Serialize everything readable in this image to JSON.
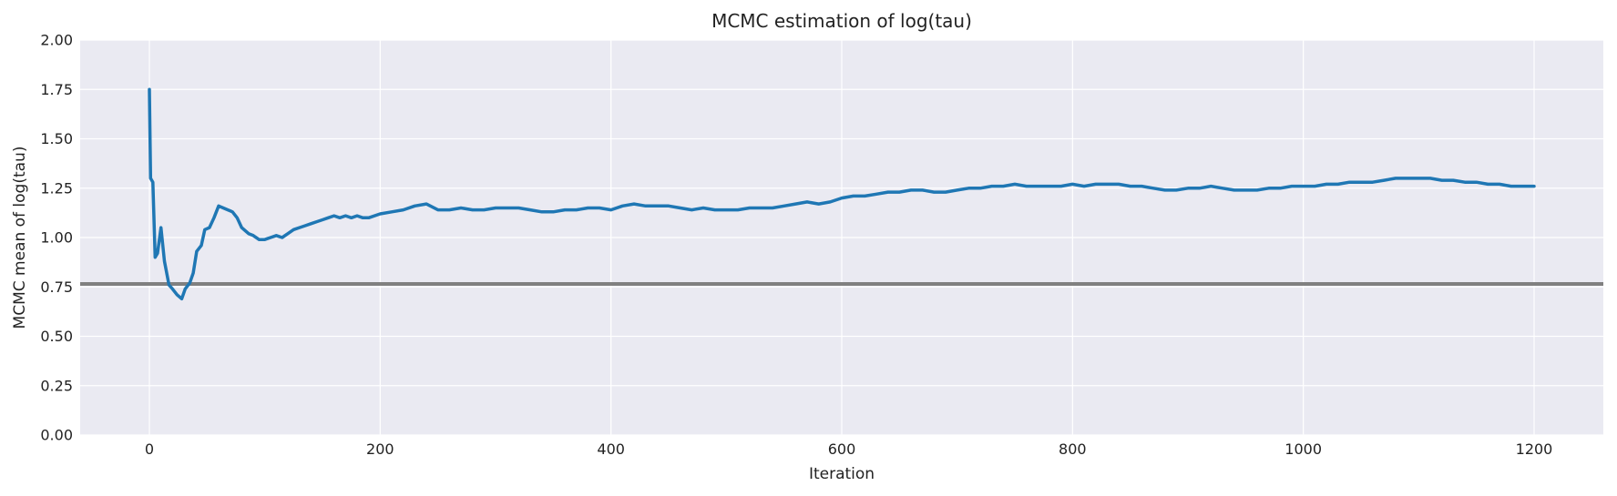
{
  "chart_data": {
    "type": "line",
    "title": "MCMC estimation of log(tau)",
    "xlabel": "Iteration",
    "ylabel": "MCMC mean of log(tau)",
    "xlim": [
      -60,
      1260
    ],
    "ylim": [
      0,
      2.0
    ],
    "xticks": [
      0,
      200,
      400,
      600,
      800,
      1000,
      1200
    ],
    "yticks": [
      0.0,
      0.25,
      0.5,
      0.75,
      1.0,
      1.25,
      1.5,
      1.75,
      2.0
    ],
    "ytick_labels": [
      "0.00",
      "0.25",
      "0.50",
      "0.75",
      "1.00",
      "1.25",
      "1.50",
      "1.75",
      "2.00"
    ],
    "xtick_labels": [
      "0",
      "200",
      "400",
      "600",
      "800",
      "1000",
      "1200"
    ],
    "grid": true,
    "background": "#EAEAF2",
    "reference_line": {
      "y": 0.765,
      "color": "#808080"
    },
    "series": [
      {
        "color": "#1F77B4",
        "x": [
          0,
          1,
          3,
          5,
          7,
          10,
          13,
          17,
          20,
          24,
          28,
          31,
          35,
          38,
          41,
          45,
          48,
          52,
          56,
          60,
          64,
          68,
          72,
          76,
          80,
          86,
          90,
          95,
          100,
          105,
          110,
          115,
          120,
          125,
          130,
          135,
          140,
          145,
          150,
          155,
          160,
          165,
          170,
          175,
          180,
          185,
          190,
          200,
          210,
          220,
          230,
          240,
          250,
          260,
          270,
          280,
          290,
          300,
          310,
          320,
          330,
          340,
          350,
          360,
          370,
          380,
          390,
          400,
          410,
          420,
          430,
          440,
          450,
          460,
          470,
          480,
          490,
          500,
          510,
          520,
          530,
          540,
          550,
          560,
          570,
          580,
          590,
          600,
          610,
          620,
          630,
          640,
          650,
          660,
          670,
          680,
          690,
          700,
          710,
          720,
          730,
          740,
          750,
          760,
          770,
          780,
          790,
          800,
          810,
          820,
          830,
          840,
          850,
          860,
          870,
          880,
          890,
          900,
          910,
          920,
          930,
          940,
          950,
          960,
          970,
          980,
          990,
          1000,
          1010,
          1020,
          1030,
          1040,
          1050,
          1060,
          1070,
          1080,
          1090,
          1100,
          1110,
          1120,
          1130,
          1140,
          1150,
          1160,
          1170,
          1180,
          1190,
          1200
        ],
        "y": [
          1.75,
          1.3,
          1.28,
          0.9,
          0.92,
          1.05,
          0.88,
          0.76,
          0.74,
          0.71,
          0.69,
          0.74,
          0.77,
          0.82,
          0.93,
          0.96,
          1.04,
          1.05,
          1.1,
          1.16,
          1.15,
          1.14,
          1.13,
          1.1,
          1.05,
          1.02,
          1.01,
          0.99,
          0.99,
          1.0,
          1.01,
          1.0,
          1.02,
          1.04,
          1.05,
          1.06,
          1.07,
          1.08,
          1.09,
          1.1,
          1.11,
          1.1,
          1.11,
          1.1,
          1.11,
          1.1,
          1.1,
          1.12,
          1.13,
          1.14,
          1.16,
          1.17,
          1.14,
          1.14,
          1.15,
          1.14,
          1.14,
          1.15,
          1.15,
          1.15,
          1.14,
          1.13,
          1.13,
          1.14,
          1.14,
          1.15,
          1.15,
          1.14,
          1.16,
          1.17,
          1.16,
          1.16,
          1.16,
          1.15,
          1.14,
          1.15,
          1.14,
          1.14,
          1.14,
          1.15,
          1.15,
          1.15,
          1.16,
          1.17,
          1.18,
          1.17,
          1.18,
          1.2,
          1.21,
          1.21,
          1.22,
          1.23,
          1.23,
          1.24,
          1.24,
          1.23,
          1.23,
          1.24,
          1.25,
          1.25,
          1.26,
          1.26,
          1.27,
          1.26,
          1.26,
          1.26,
          1.26,
          1.27,
          1.26,
          1.27,
          1.27,
          1.27,
          1.26,
          1.26,
          1.25,
          1.24,
          1.24,
          1.25,
          1.25,
          1.26,
          1.25,
          1.24,
          1.24,
          1.24,
          1.25,
          1.25,
          1.26,
          1.26,
          1.26,
          1.27,
          1.27,
          1.28,
          1.28,
          1.28,
          1.29,
          1.3,
          1.3,
          1.3,
          1.3,
          1.29,
          1.29,
          1.28,
          1.28,
          1.27,
          1.27,
          1.26,
          1.26,
          1.26
        ]
      }
    ]
  }
}
